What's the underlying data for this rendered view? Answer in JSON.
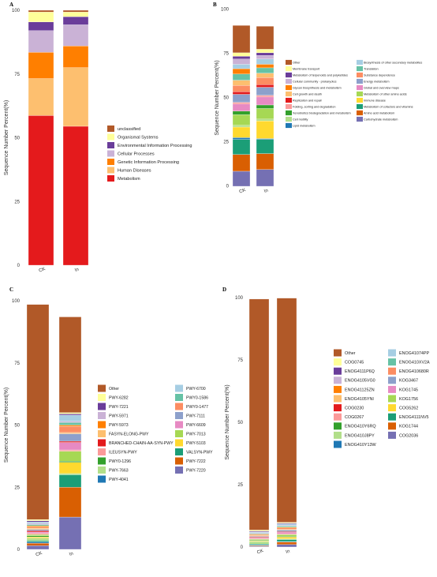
{
  "chart_data": [
    {
      "panel": "A",
      "type": "bar",
      "stacked": true,
      "categories": [
        "CK",
        "In"
      ],
      "ylabel": "Sequence Number Percent(%)",
      "ylim": [
        0,
        100
      ],
      "yticks": [
        0,
        25,
        50,
        75,
        100
      ],
      "legend_position": "right",
      "series": [
        {
          "name": "Metabolism",
          "color": "#e41a1c",
          "values": [
            58.7,
            54.5
          ]
        },
        {
          "name": "Human Diseases",
          "color": "#fdbf6f",
          "values": [
            14.5,
            23.0
          ]
        },
        {
          "name": "Genetic Information Processing",
          "color": "#ff7f00",
          "values": [
            10.3,
            8.5
          ]
        },
        {
          "name": "Cellular Processes",
          "color": "#cab2d6",
          "values": [
            8.5,
            8.3
          ]
        },
        {
          "name": "Environmental Information Processing",
          "color": "#6a3d9a",
          "values": [
            3.4,
            3.2
          ]
        },
        {
          "name": "Organismal Systems",
          "color": "#ffff99",
          "values": [
            3.9,
            1.8
          ]
        },
        {
          "name": "unclassified",
          "color": "#b15928",
          "values": [
            0.7,
            0.7
          ]
        }
      ]
    },
    {
      "panel": "B",
      "type": "bar",
      "stacked": true,
      "categories": [
        "CK",
        "In"
      ],
      "ylabel": "Sequence Number Percent(%)",
      "ylim": [
        0,
        100
      ],
      "yticks": [
        0,
        25,
        50,
        75,
        100
      ],
      "legend_position": "right",
      "series": [
        {
          "name": "Carbohydrate metabolism",
          "color": "#7570b3",
          "values": [
            8.5,
            9.5
          ]
        },
        {
          "name": "Amino acid metabolism",
          "color": "#d95f02",
          "values": [
            9.5,
            9.0
          ]
        },
        {
          "name": "Metabolism of cofactors and vitamins",
          "color": "#1b9e77",
          "values": [
            8.5,
            8.0
          ]
        },
        {
          "name": "Lipid metabolism",
          "color": "#1f78b4",
          "values": [
            1.0,
            0.5
          ]
        },
        {
          "name": "Immune disease",
          "color": "#ffd92f",
          "values": [
            6.0,
            10.0
          ]
        },
        {
          "name": "Cell motility",
          "color": "#b2df8a",
          "values": [
            1.0,
            1.0
          ]
        },
        {
          "name": "Metabolism of other amino acids",
          "color": "#a6d854",
          "values": [
            6.0,
            6.0
          ]
        },
        {
          "name": "Xenobiotics biodegradation and metabolism",
          "color": "#33a02c",
          "values": [
            2.0,
            2.0
          ]
        },
        {
          "name": "Global and overview maps",
          "color": "#e78ac3",
          "values": [
            4.0,
            4.5
          ]
        },
        {
          "name": "Folding, sorting and degradation",
          "color": "#fb9a99",
          "values": [
            1.0,
            1.0
          ]
        },
        {
          "name": "Energy metabolism",
          "color": "#8da0cb",
          "values": [
            4.5,
            4.5
          ]
        },
        {
          "name": "Replication and repair",
          "color": "#e31a1c",
          "values": [
            1.5,
            1.5
          ]
        },
        {
          "name": "Substance dependence",
          "color": "#fc8d62",
          "values": [
            3.5,
            4.0
          ]
        },
        {
          "name": "Cell growth and death",
          "color": "#fdbf6f",
          "values": [
            3.0,
            2.5
          ]
        },
        {
          "name": "Translation",
          "color": "#66c2a5",
          "values": [
            3.5,
            3.0
          ]
        },
        {
          "name": "Glycan biosynthesis and metabolism",
          "color": "#ff7f00",
          "values": [
            3.0,
            2.0
          ]
        },
        {
          "name": "Biosynthesis of other secondary metabolites",
          "color": "#a6cee3",
          "values": [
            2.5,
            3.0
          ]
        },
        {
          "name": "Cellular community - prokaryotes",
          "color": "#cab2d6",
          "values": [
            3.0,
            2.0
          ]
        },
        {
          "name": "Metabolism of terpenoids and polyketides",
          "color": "#6a3d9a",
          "values": [
            1.5,
            1.5
          ]
        },
        {
          "name": "Membrane transport",
          "color": "#ffff99",
          "values": [
            2.0,
            2.0
          ]
        },
        {
          "name": "Other",
          "color": "#b15928",
          "values": [
            15.5,
            13.0
          ]
        }
      ]
    },
    {
      "panel": "C",
      "type": "bar",
      "stacked": true,
      "categories": [
        "CK",
        "In"
      ],
      "ylabel": "Sequence Number Percent(%)",
      "ylim": [
        0,
        100
      ],
      "yticks": [
        0,
        25,
        50,
        75,
        100
      ],
      "legend_position": "right",
      "series": [
        {
          "name": "PWY-7220",
          "color": "#7570b3",
          "values": [
            1.5,
            13.0
          ]
        },
        {
          "name": "PWY-7222",
          "color": "#d95f02",
          "values": [
            1.0,
            12.0
          ]
        },
        {
          "name": "PWY-4041",
          "color": "#1f78b4",
          "values": [
            0.5,
            0.0
          ]
        },
        {
          "name": "VALSYN-PWY",
          "color": "#1b9e77",
          "values": [
            0.5,
            5.0
          ]
        },
        {
          "name": "PWY-7663",
          "color": "#b2df8a",
          "values": [
            1.0,
            0.5
          ]
        },
        {
          "name": "PWY-5103",
          "color": "#ffd92f",
          "values": [
            0.5,
            4.5
          ]
        },
        {
          "name": "PWY0-1296",
          "color": "#33a02c",
          "values": [
            0.5,
            0.5
          ]
        },
        {
          "name": "PWY-7013",
          "color": "#a6d854",
          "values": [
            0.5,
            4.0
          ]
        },
        {
          "name": "ILEUSYN-PWY",
          "color": "#fb9a99",
          "values": [
            0.5,
            0.5
          ]
        },
        {
          "name": "PWY-6609",
          "color": "#e78ac3",
          "values": [
            0.5,
            3.0
          ]
        },
        {
          "name": "BRANCHED-CHAIN-AA-SYN-PWY",
          "color": "#e31a1c",
          "values": [
            0.5,
            0.5
          ]
        },
        {
          "name": "PWY-7111",
          "color": "#8da0cb",
          "values": [
            0.5,
            3.0
          ]
        },
        {
          "name": "FASYN-ELONG-PWY",
          "color": "#fdbf6f",
          "values": [
            0.5,
            0.5
          ]
        },
        {
          "name": "PWY0-1477",
          "color": "#fc8d62",
          "values": [
            0.5,
            2.5
          ]
        },
        {
          "name": "PWY-5973",
          "color": "#ff7f00",
          "values": [
            0.5,
            0.5
          ]
        },
        {
          "name": "PWY0-1586",
          "color": "#66c2a5",
          "values": [
            0.5,
            1.0
          ]
        },
        {
          "name": "PWY-5971",
          "color": "#cab2d6",
          "values": [
            0.5,
            0.5
          ]
        },
        {
          "name": "PWY-6700",
          "color": "#a6cee3",
          "values": [
            0.5,
            2.5
          ]
        },
        {
          "name": "PWY-7221",
          "color": "#6a3d9a",
          "values": [
            0.5,
            0.5
          ]
        },
        {
          "name": "PWY-6282",
          "color": "#ffff99",
          "values": [
            0.5,
            0.5
          ]
        },
        {
          "name": "Other",
          "color": "#b15928",
          "values": [
            86.5,
            38.5
          ]
        }
      ]
    },
    {
      "panel": "D",
      "type": "bar",
      "stacked": true,
      "categories": [
        "CK",
        "In"
      ],
      "ylabel": "Sequence Number Percent(%)",
      "ylim": [
        0,
        100
      ],
      "yticks": [
        0,
        25,
        50,
        75,
        100
      ],
      "legend_position": "right",
      "series": [
        {
          "name": "COG2036",
          "color": "#7570b3",
          "values": [
            0.3,
            1.0
          ]
        },
        {
          "name": "KOG1744",
          "color": "#d95f02",
          "values": [
            0.3,
            1.0
          ]
        },
        {
          "name": "ENOG410Y13W",
          "color": "#1f78b4",
          "values": [
            0.3,
            0.2
          ]
        },
        {
          "name": "ENOG4111NV5",
          "color": "#1b9e77",
          "values": [
            0.3,
            0.8
          ]
        },
        {
          "name": "ENOG410J8PY",
          "color": "#b2df8a",
          "values": [
            1.0,
            0.3
          ]
        },
        {
          "name": "COG5262",
          "color": "#ffd92f",
          "values": [
            0.3,
            0.7
          ]
        },
        {
          "name": "ENOG410Y6RQ",
          "color": "#33a02c",
          "values": [
            0.3,
            0.3
          ]
        },
        {
          "name": "KOG1756",
          "color": "#a6d854",
          "values": [
            0.3,
            0.7
          ]
        },
        {
          "name": "COG0267",
          "color": "#fb9a99",
          "values": [
            0.3,
            0.3
          ]
        },
        {
          "name": "KOG1745",
          "color": "#e78ac3",
          "values": [
            0.3,
            0.6
          ]
        },
        {
          "name": "COG0230",
          "color": "#e31a1c",
          "values": [
            0.3,
            0.3
          ]
        },
        {
          "name": "KOG3467",
          "color": "#8da0cb",
          "values": [
            0.3,
            0.6
          ]
        },
        {
          "name": "ENOG4105YNI",
          "color": "#fdbf6f",
          "values": [
            0.3,
            0.3
          ]
        },
        {
          "name": "ENOG410680R",
          "color": "#fc8d62",
          "values": [
            0.3,
            0.6
          ]
        },
        {
          "name": "ENOG41125ZN",
          "color": "#ff7f00",
          "values": [
            0.3,
            0.3
          ]
        },
        {
          "name": "ENOG410XV2A",
          "color": "#66c2a5",
          "values": [
            0.3,
            0.5
          ]
        },
        {
          "name": "ENOG4105VG0",
          "color": "#cab2d6",
          "values": [
            0.3,
            0.3
          ]
        },
        {
          "name": "ENOG41074PP",
          "color": "#a6cee3",
          "values": [
            0.3,
            0.5
          ]
        },
        {
          "name": "ENOG4111P6Q",
          "color": "#6a3d9a",
          "values": [
            0.3,
            0.3
          ]
        },
        {
          "name": "COG0745",
          "color": "#ffff99",
          "values": [
            0.4,
            0.3
          ]
        },
        {
          "name": "Other",
          "color": "#b15928",
          "values": [
            92.6,
            89.9
          ]
        }
      ]
    }
  ],
  "legends": {
    "A": {
      "columns": [
        [
          "unclassified",
          "Organismal Systems",
          "Environmental Information Processing",
          "Cellular Processes",
          "Genetic Information Processing",
          "Human Diseases",
          "Metabolism"
        ]
      ]
    },
    "B": {
      "columns": [
        [
          "Other",
          "Membrane transport",
          "Metabolism of terpenoids and polyketides",
          "Cellular community - prokaryotes",
          "Glycan biosynthesis and metabolism",
          "Cell growth and death",
          "Replication and repair",
          "Folding, sorting and degradation",
          "Xenobiotics biodegradation and metabolism",
          "Cell motility",
          "Lipid metabolism"
        ],
        [
          "Biosynthesis of other secondary metabolites",
          "Translation",
          "Substance dependence",
          "Energy metabolism",
          "Global and overview maps",
          "Metabolism of other amino acids",
          "Immune disease",
          "Metabolism of cofactors and vitamins",
          "Amino acid metabolism",
          "Carbohydrate metabolism"
        ]
      ]
    },
    "C": {
      "columns": [
        [
          "Other",
          "PWY-6282",
          "PWY-7221",
          "PWY-5971",
          "PWY-5973",
          "FASYN-ELONG-PWY",
          "BRANCHED-CHAIN-AA-SYN-PWY",
          "ILEUSYN-PWY",
          "PWY0-1296",
          "PWY-7663",
          "PWY-4041"
        ],
        [
          "PWY-6700",
          "PWY0-1586",
          "PWY0-1477",
          "PWY-7111",
          "PWY-6609",
          "PWY-7013",
          "PWY-5103",
          "VALSYN-PWY",
          "PWY-7222",
          "PWY-7220"
        ]
      ]
    },
    "D": {
      "columns": [
        [
          "Other",
          "COG0745",
          "ENOG4111P6Q",
          "ENOG4105VG0",
          "ENOG41125ZN",
          "ENOG4105YNI",
          "COG0230",
          "COG0267",
          "ENOG410Y6RQ",
          "ENOG410J8PY",
          "ENOG410Y13W"
        ],
        [
          "ENOG41074PP",
          "ENOG410XV2A",
          "ENOG410680R",
          "KOG3467",
          "KOG1745",
          "KOG1756",
          "COG5262",
          "ENOG4111NV5",
          "KOG1744",
          "COG2036"
        ]
      ]
    }
  }
}
